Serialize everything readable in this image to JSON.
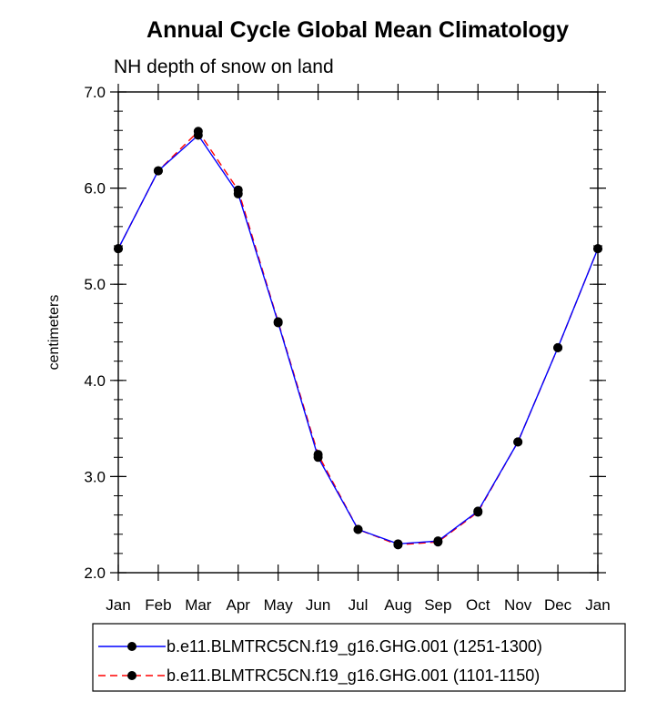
{
  "chart_data": {
    "type": "line",
    "title": "Annual Cycle Global Mean Climatology",
    "subtitle": "NH depth of snow on land",
    "xlabel": "",
    "ylabel": "centimeters",
    "categories": [
      "Jan",
      "Feb",
      "Mar",
      "Apr",
      "May",
      "Jun",
      "Jul",
      "Aug",
      "Sep",
      "Oct",
      "Nov",
      "Dec",
      "Jan"
    ],
    "ylim": [
      2.0,
      7.0
    ],
    "yticks": [
      "2.0",
      "3.0",
      "4.0",
      "5.0",
      "6.0",
      "7.0"
    ],
    "grid": false,
    "legend_position": "bottom",
    "series": [
      {
        "name": "b.e11.BLMTRC5CN.f19_g16.GHG.001 (1251-1300)",
        "color": "#0000ff",
        "style": "solid",
        "values": [
          5.37,
          6.18,
          6.55,
          5.94,
          4.6,
          3.2,
          2.45,
          2.3,
          2.33,
          2.64,
          3.36,
          4.34,
          5.37
        ]
      },
      {
        "name": "b.e11.BLMTRC5CN.f19_g16.GHG.001 (1101-1150)",
        "color": "#ff0000",
        "style": "dashed",
        "values": [
          5.37,
          6.18,
          6.59,
          5.98,
          4.61,
          3.23,
          2.45,
          2.29,
          2.32,
          2.63,
          3.36,
          4.34,
          5.37
        ]
      }
    ]
  }
}
